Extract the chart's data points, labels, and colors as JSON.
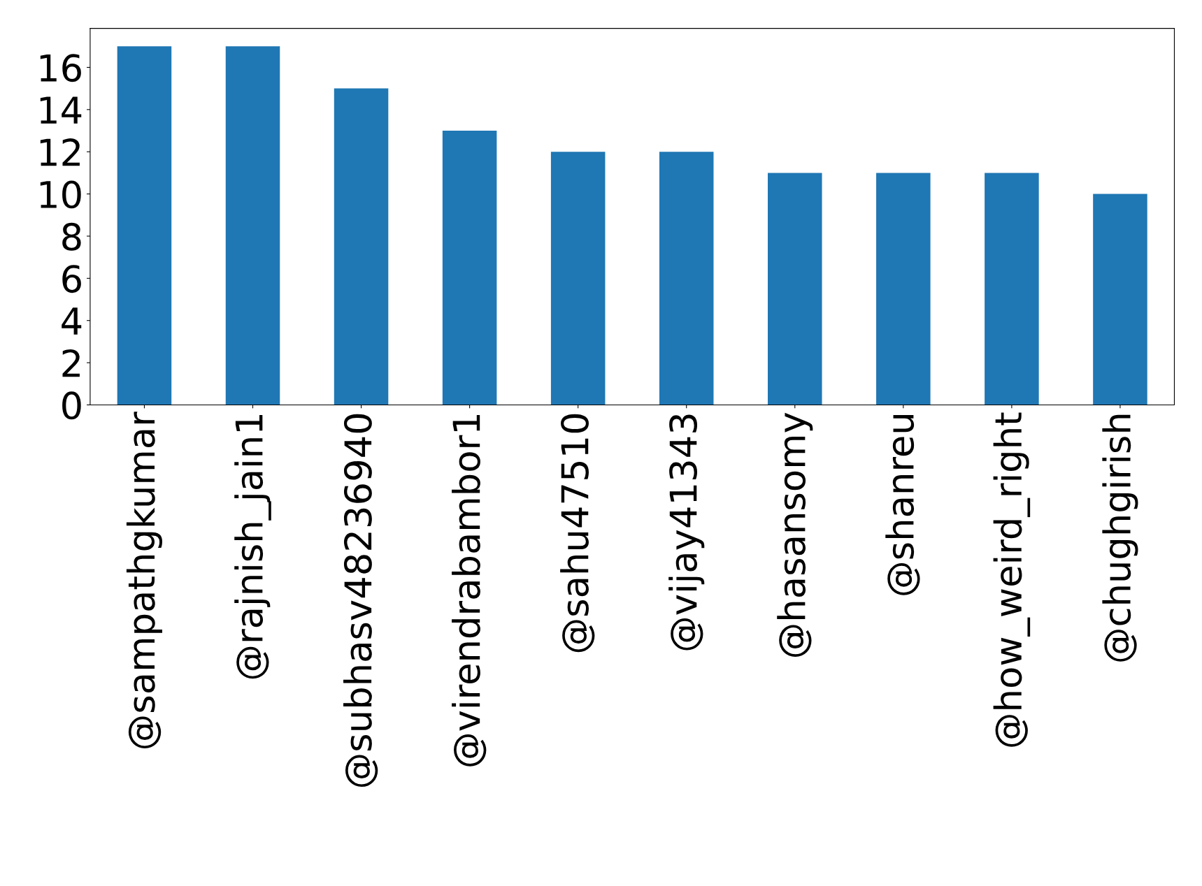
{
  "chart_data": {
    "type": "bar",
    "categories": [
      "@sampathgkumar",
      "@rajnish_jain1",
      "@subhasv48236940",
      "@virendrabambor1",
      "@sahu47510",
      "@vijay41343",
      "@hasansomy",
      "@shanreu",
      "@how_weird_right",
      "@chughgirish"
    ],
    "values": [
      17,
      17,
      15,
      13,
      12,
      12,
      11,
      11,
      11,
      10
    ],
    "color": "#1f77b4",
    "ylim": [
      0,
      17.85
    ],
    "yticks": [
      0,
      2,
      4,
      6,
      8,
      10,
      12,
      14,
      16
    ],
    "grid": false,
    "legend": false
  }
}
